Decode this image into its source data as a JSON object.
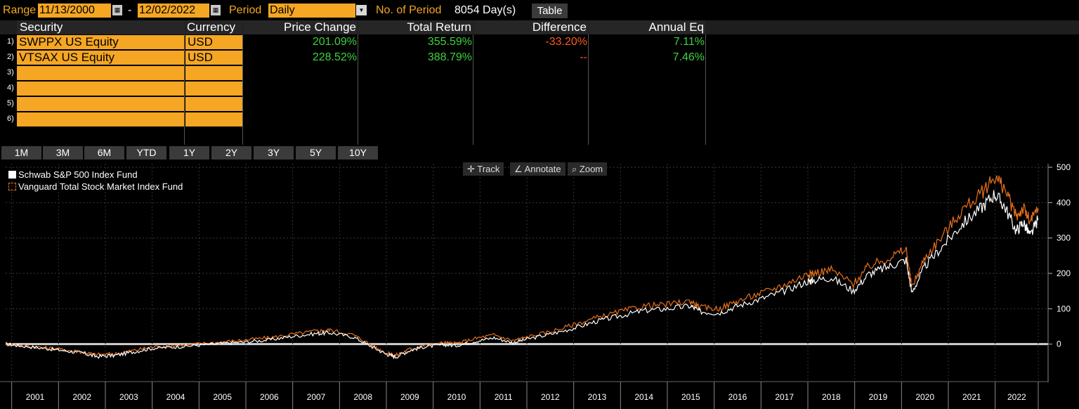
{
  "toolbar": {
    "range_label": "Range",
    "start_date": "11/13/2000",
    "dash": "-",
    "end_date": "12/02/2022",
    "period_label": "Period",
    "period_value": "Daily",
    "num_periods_label": "No. of Period",
    "num_periods_value": "8054 Day(s)",
    "table_button": "Table"
  },
  "table": {
    "headers": [
      "Security",
      "Currency",
      "Price Change",
      "Total Return",
      "Difference",
      "Annual Eq"
    ],
    "rows": [
      {
        "num": "1)",
        "security": "SWPPX US Equity",
        "currency": "USD",
        "price_change": "201.09%",
        "total_return": "355.59%",
        "difference": "-33.20%",
        "annual_eq": "7.11%"
      },
      {
        "num": "2)",
        "security": "VTSAX US Equity",
        "currency": "USD",
        "price_change": "228.52%",
        "total_return": "388.79%",
        "difference": "--",
        "annual_eq": "7.46%"
      },
      {
        "num": "3)",
        "security": "",
        "currency": ""
      },
      {
        "num": "4)",
        "security": "",
        "currency": ""
      },
      {
        "num": "5)",
        "security": "",
        "currency": ""
      },
      {
        "num": "6)",
        "security": "",
        "currency": ""
      }
    ]
  },
  "range_buttons": [
    "1M",
    "3M",
    "6M",
    "YTD",
    "1Y",
    "2Y",
    "3Y",
    "5Y",
    "10Y"
  ],
  "chart_tools": {
    "track": "Track",
    "annotate": "Annotate",
    "zoom": "Zoom"
  },
  "colors": {
    "accent": "#f5a623",
    "positive": "#3cd23c",
    "negative": "#ff5a1a",
    "series_white": "#ffffff",
    "series_orange": "#e8701a"
  },
  "chart_data": {
    "type": "line",
    "legend_position": "top-left",
    "grid": true,
    "x_ticks": [
      "2001",
      "2002",
      "2003",
      "2004",
      "2005",
      "2006",
      "2007",
      "2008",
      "2009",
      "2010",
      "2011",
      "2012",
      "2013",
      "2014",
      "2015",
      "2016",
      "2017",
      "2018",
      "2019",
      "2020",
      "2021",
      "2022"
    ],
    "y_ticks": [
      0,
      100,
      200,
      300,
      400,
      500
    ],
    "ylim": [
      -100,
      510
    ],
    "xlim": [
      2000.87,
      2022.92
    ],
    "series": [
      {
        "name": "Schwab S&P 500 Index Fund",
        "color": "#ffffff",
        "x": [
          2000.87,
          2001.2,
          2001.7,
          2002.1,
          2002.5,
          2002.8,
          2003.2,
          2003.6,
          2004.0,
          2004.5,
          2005.0,
          2005.5,
          2006.0,
          2006.5,
          2007.0,
          2007.5,
          2007.8,
          2008.3,
          2008.7,
          2009.0,
          2009.2,
          2009.5,
          2009.8,
          2010.2,
          2010.5,
          2010.9,
          2011.3,
          2011.7,
          2012.0,
          2012.5,
          2013.0,
          2013.5,
          2014.0,
          2014.5,
          2015.0,
          2015.5,
          2015.7,
          2016.1,
          2016.5,
          2017.0,
          2017.5,
          2018.0,
          2018.1,
          2018.5,
          2018.97,
          2019.3,
          2019.7,
          2020.1,
          2020.22,
          2020.5,
          2020.9,
          2021.3,
          2021.7,
          2021.99,
          2022.2,
          2022.45,
          2022.6,
          2022.75,
          2022.92
        ],
        "y": [
          0,
          -5,
          -12,
          -18,
          -25,
          -35,
          -32,
          -22,
          -12,
          -8,
          -3,
          2,
          6,
          12,
          22,
          30,
          32,
          20,
          -8,
          -28,
          -36,
          -18,
          -8,
          -2,
          -4,
          8,
          18,
          4,
          14,
          28,
          45,
          65,
          80,
          95,
          100,
          108,
          92,
          88,
          108,
          128,
          150,
          178,
          180,
          188,
          150,
          198,
          218,
          238,
          145,
          220,
          280,
          340,
          385,
          425,
          390,
          320,
          345,
          305,
          355
        ]
      },
      {
        "name": "Vanguard Total Stock Market Index Fund",
        "color": "#e8701a",
        "x": [
          2000.87,
          2001.2,
          2001.7,
          2002.1,
          2002.5,
          2002.8,
          2003.2,
          2003.6,
          2004.0,
          2004.5,
          2005.0,
          2005.5,
          2006.0,
          2006.5,
          2007.0,
          2007.5,
          2007.8,
          2008.3,
          2008.7,
          2009.0,
          2009.2,
          2009.5,
          2009.8,
          2010.2,
          2010.5,
          2010.9,
          2011.3,
          2011.7,
          2012.0,
          2012.5,
          2013.0,
          2013.5,
          2014.0,
          2014.5,
          2015.0,
          2015.5,
          2015.7,
          2016.1,
          2016.5,
          2017.0,
          2017.5,
          2018.0,
          2018.1,
          2018.5,
          2018.97,
          2019.3,
          2019.7,
          2020.1,
          2020.22,
          2020.5,
          2020.9,
          2021.3,
          2021.7,
          2021.99,
          2022.2,
          2022.45,
          2022.6,
          2022.75,
          2022.92
        ],
        "y": [
          0,
          -4,
          -10,
          -16,
          -22,
          -30,
          -28,
          -18,
          -8,
          -4,
          1,
          6,
          12,
          18,
          28,
          37,
          40,
          26,
          -4,
          -26,
          -32,
          -14,
          -4,
          4,
          2,
          16,
          26,
          10,
          20,
          35,
          55,
          75,
          92,
          108,
          112,
          122,
          104,
          100,
          122,
          144,
          168,
          198,
          200,
          210,
          170,
          220,
          242,
          268,
          160,
          245,
          310,
          380,
          425,
          475,
          440,
          360,
          385,
          345,
          385
        ]
      }
    ]
  }
}
